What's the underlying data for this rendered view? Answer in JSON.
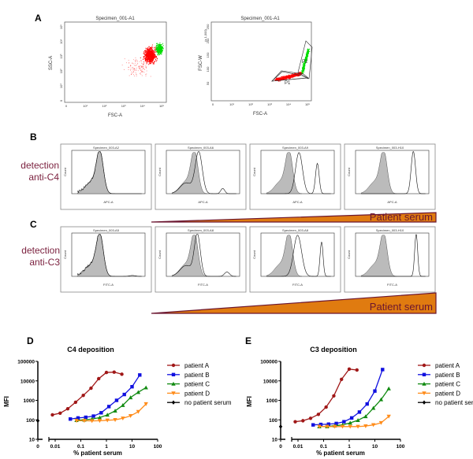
{
  "panel_labels": {
    "a": "A",
    "b": "B",
    "c": "C",
    "d": "D",
    "e": "E"
  },
  "panel_a": {
    "plot1": {
      "title": "Specimen_001-A1",
      "xlabel": "FSC-A",
      "ylabel": "SSC-A",
      "xticks": [
        "0",
        "10¹",
        "10²",
        "10³",
        "10⁴",
        "10⁵"
      ],
      "yticks": [
        "0",
        "10¹",
        "10²",
        "10³",
        "10⁴",
        "10⁵"
      ]
    },
    "plot2": {
      "title": "Specimen_001-A1",
      "xlabel": "FSC-A",
      "ylabel": "FSC-W",
      "yscale_note": "(x 1,000)",
      "xticks": [
        "0",
        "10¹",
        "10²",
        "10³",
        "10⁴",
        "10⁵"
      ],
      "yticks": [
        "50",
        "100",
        "150",
        "200",
        "250"
      ],
      "gates": [
        "P1",
        "P2"
      ]
    },
    "colors": {
      "p1": "#ff0000",
      "p2": "#00dd00"
    }
  },
  "panel_b": {
    "row_label_1": "detection",
    "row_label_2": "anti-C4",
    "xlabel": "APC-A",
    "ylabel": "Count",
    "histograms": [
      {
        "title": "Specimen_003-A2",
        "peaks": []
      },
      {
        "title": "Specimen_003-A6",
        "peaks": [
          {
            "pos": 3.3,
            "h": 0.95,
            "w": 0.35
          },
          {
            "pos": 5.0,
            "h": 0.12,
            "w": 0.2
          }
        ]
      },
      {
        "title": "Specimen_003-A9",
        "peaks": [
          {
            "pos": 3.7,
            "h": 0.95,
            "w": 0.35
          },
          {
            "pos": 5.0,
            "h": 0.7,
            "w": 0.18
          }
        ]
      },
      {
        "title": "Specimen_003-H10",
        "peaks": [
          {
            "pos": 5.1,
            "h": 0.98,
            "w": 0.22
          }
        ]
      }
    ],
    "gradient_label": "Patient serum"
  },
  "panel_c": {
    "row_label_1": "detection",
    "row_label_2": "anti-C3",
    "xlabel": "FITC-A",
    "ylabel": "Count",
    "histograms": [
      {
        "title": "Specimen_003-A5",
        "peaks": [
          {
            "pos": 5.3,
            "h": 0.02,
            "w": 0.3
          }
        ]
      },
      {
        "title": "Specimen_003-A8",
        "peaks": [
          {
            "pos": 3.2,
            "h": 0.95,
            "w": 0.3
          },
          {
            "pos": 5.3,
            "h": 0.1,
            "w": 0.25
          }
        ]
      },
      {
        "title": "Specimen_003-A8",
        "peaks": [
          {
            "pos": 3.6,
            "h": 0.95,
            "w": 0.4
          },
          {
            "pos": 5.3,
            "h": 0.8,
            "w": 0.15
          }
        ]
      },
      {
        "title": "Specimen_003-H10",
        "peaks": [
          {
            "pos": 5.3,
            "h": 0.98,
            "w": 0.15
          }
        ]
      }
    ],
    "gradient_label": "Patient serum",
    "colors": {
      "gradient_fill": "#e07b10",
      "gradient_edge": "#6b1630",
      "row_label": "#7a1f3d"
    }
  },
  "chart_data": [
    {
      "type": "line",
      "title": "C4 deposition",
      "xlabel": "% patient serum",
      "ylabel": "MFI",
      "xscale": "log",
      "yscale": "log",
      "xlim": [
        0.005,
        100
      ],
      "ylim": [
        10,
        100000
      ],
      "xticks": [
        "0",
        "0.01",
        "0.1",
        "1",
        "10",
        "100"
      ],
      "yticks": [
        "10",
        "100",
        "1000",
        "10000",
        "100000"
      ],
      "legend_position": "right",
      "series": [
        {
          "name": "patient A",
          "color": "#a01818",
          "marker": "circle",
          "x": [
            0.0078,
            0.0156,
            0.031,
            0.0625,
            0.125,
            0.25,
            0.5,
            1,
            2,
            4
          ],
          "y": [
            180,
            220,
            370,
            800,
            1800,
            4200,
            13000,
            27000,
            28000,
            22000
          ]
        },
        {
          "name": "patient B",
          "color": "#1010e0",
          "marker": "square",
          "x": [
            0.039,
            0.078,
            0.156,
            0.3125,
            0.625,
            1.25,
            2.5,
            5,
            10,
            20
          ],
          "y": [
            110,
            125,
            135,
            155,
            230,
            480,
            1000,
            2000,
            5000,
            20000
          ]
        },
        {
          "name": "patient C",
          "color": "#108a10",
          "marker": "triangle-up",
          "x": [
            0.068,
            0.137,
            0.273,
            0.547,
            1.09,
            2.19,
            4.38,
            8.75,
            17.5,
            35
          ],
          "y": [
            95,
            100,
            110,
            130,
            180,
            290,
            560,
            1400,
            2600,
            4500
          ]
        },
        {
          "name": "patient D",
          "color": "#ff8c1a",
          "marker": "triangle-down",
          "x": [
            0.068,
            0.137,
            0.273,
            0.547,
            1.09,
            2.19,
            4.38,
            8.75,
            17.5,
            35
          ],
          "y": [
            90,
            90,
            88,
            90,
            95,
            100,
            120,
            160,
            260,
            650
          ]
        },
        {
          "name": "no patient serum",
          "color": "#000000",
          "marker": "diamond",
          "x": [
            0
          ],
          "y": [
            90
          ]
        }
      ]
    },
    {
      "type": "line",
      "title": "C3 deposition",
      "xlabel": "% patient serum",
      "ylabel": "MFI",
      "xscale": "log",
      "yscale": "log",
      "xlim": [
        0.005,
        100
      ],
      "ylim": [
        10,
        100000
      ],
      "xticks": [
        "0",
        "0.01",
        "0.1",
        "1",
        "10",
        "100"
      ],
      "yticks": [
        "10",
        "100",
        "1000",
        "10000",
        "100000"
      ],
      "legend_position": "right",
      "series": [
        {
          "name": "patient A",
          "color": "#a01818",
          "marker": "circle",
          "x": [
            0.0078,
            0.0156,
            0.031,
            0.0625,
            0.125,
            0.25,
            0.5,
            1,
            2
          ],
          "y": [
            80,
            90,
            120,
            190,
            450,
            1700,
            12000,
            40000,
            36000
          ]
        },
        {
          "name": "patient B",
          "color": "#1010e0",
          "marker": "square",
          "x": [
            0.039,
            0.078,
            0.156,
            0.3125,
            0.625,
            1.25,
            2.5,
            5,
            10,
            20
          ],
          "y": [
            55,
            58,
            60,
            65,
            80,
            125,
            250,
            650,
            3000,
            38000
          ]
        },
        {
          "name": "patient C",
          "color": "#108a10",
          "marker": "triangle-up",
          "x": [
            0.068,
            0.137,
            0.273,
            0.547,
            1.09,
            2.19,
            4.38,
            8.75,
            17.5,
            35
          ],
          "y": [
            45,
            45,
            50,
            55,
            70,
            95,
            150,
            400,
            1100,
            4000
          ]
        },
        {
          "name": "patient D",
          "color": "#ff8c1a",
          "marker": "triangle-down",
          "x": [
            0.068,
            0.137,
            0.273,
            0.547,
            1.09,
            2.19,
            4.38,
            8.75,
            17.5,
            35
          ],
          "y": [
            45,
            45,
            45,
            45,
            45,
            45,
            48,
            55,
            70,
            150
          ]
        },
        {
          "name": "no patient serum",
          "color": "#000000",
          "marker": "diamond",
          "x": [
            0
          ],
          "y": [
            45
          ]
        }
      ]
    }
  ]
}
